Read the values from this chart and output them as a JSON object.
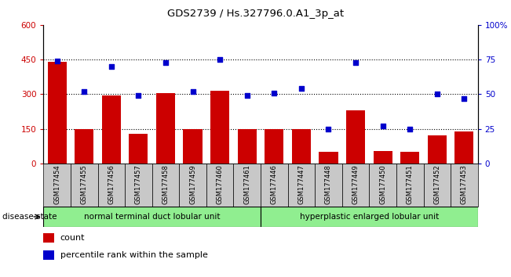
{
  "title": "GDS2739 / Hs.327796.0.A1_3p_at",
  "samples": [
    "GSM177454",
    "GSM177455",
    "GSM177456",
    "GSM177457",
    "GSM177458",
    "GSM177459",
    "GSM177460",
    "GSM177461",
    "GSM177446",
    "GSM177447",
    "GSM177448",
    "GSM177449",
    "GSM177450",
    "GSM177451",
    "GSM177452",
    "GSM177453"
  ],
  "counts": [
    440,
    148,
    295,
    130,
    305,
    150,
    315,
    150,
    150,
    150,
    50,
    230,
    55,
    50,
    120,
    140
  ],
  "percentiles": [
    74,
    52,
    70,
    49,
    73,
    52,
    75,
    49,
    51,
    54,
    25,
    73,
    27,
    25,
    50,
    47
  ],
  "group1_label": "normal terminal duct lobular unit",
  "group2_label": "hyperplastic enlarged lobular unit",
  "group1_count": 8,
  "group2_count": 8,
  "disease_state_label": "disease state",
  "bar_color": "#cc0000",
  "dot_color": "#0000cc",
  "ylim_left": [
    0,
    600
  ],
  "ylim_right": [
    0,
    100
  ],
  "yticks_left": [
    0,
    150,
    300,
    450,
    600
  ],
  "yticks_right": [
    0,
    25,
    50,
    75,
    100
  ],
  "ytick_labels_left": [
    "0",
    "150",
    "300",
    "450",
    "600"
  ],
  "ytick_labels_right": [
    "0",
    "25",
    "50",
    "75",
    "100%"
  ],
  "group1_color": "#90ee90",
  "group2_color": "#90ee90",
  "tick_bg_color": "#c8c8c8",
  "legend_count_label": "count",
  "legend_pct_label": "percentile rank within the sample"
}
